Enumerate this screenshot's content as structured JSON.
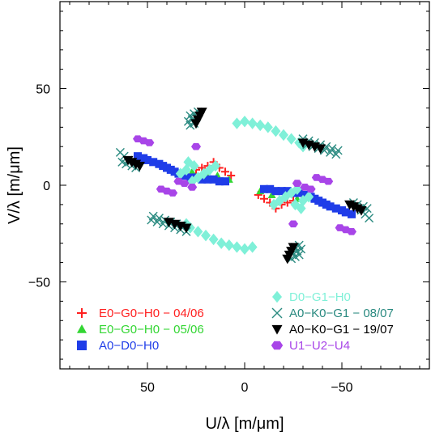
{
  "chart_data": {
    "type": "scatter",
    "xlabel": "U/λ  [m/μm]",
    "ylabel": "V/λ  [m/μm]",
    "xlim": [
      95,
      -95
    ],
    "ylim": [
      -95,
      95
    ],
    "xticks": [
      50,
      0,
      -50
    ],
    "yticks": [
      50,
      0,
      -50
    ],
    "x_tick_labels": [
      "50",
      "0",
      "−50"
    ],
    "y_tick_labels": [
      "50",
      "0",
      "−50"
    ],
    "grid": false,
    "legend_left": [
      {
        "label": "E0−G0−H0 − 04/06",
        "color": "#ff2020",
        "marker": "plus"
      },
      {
        "label": "E0−G0−H0 − 05/06",
        "color": "#33d633",
        "marker": "triangle-up"
      },
      {
        "label": "A0−D0−H0",
        "color": "#1f3de8",
        "marker": "square"
      }
    ],
    "legend_right": [
      {
        "label": "D0−G1−H0",
        "color": "#7ff0d8",
        "marker": "diamond"
      },
      {
        "label": "A0−K0−G1 − 08/07",
        "color": "#2a8a80",
        "marker": "cross"
      },
      {
        "label": "A0−K0−G1 − 19/07",
        "color": "#000000",
        "marker": "triangle-down"
      },
      {
        "label": "U1−U2−U4",
        "color": "#a845e8",
        "marker": "hexagon"
      }
    ],
    "series": [
      {
        "name": "E0−G0−H0 − 04/06",
        "color": "#ff2020",
        "marker": "plus",
        "points": [
          [
            25,
            8
          ],
          [
            22,
            9
          ],
          [
            19,
            10
          ],
          [
            16,
            12
          ],
          [
            13,
            9
          ],
          [
            10,
            7
          ],
          [
            7,
            5
          ],
          [
            -25,
            -8
          ],
          [
            -22,
            -9
          ],
          [
            -19,
            -10
          ],
          [
            -16,
            -12
          ],
          [
            -13,
            -9
          ],
          [
            -10,
            -7
          ],
          [
            -7,
            -5
          ]
        ]
      },
      {
        "name": "E0−G0−H0 − 05/06",
        "color": "#33d633",
        "marker": "triangle-up",
        "points": [
          [
            27,
            7
          ],
          [
            20,
            6
          ],
          [
            14,
            5
          ],
          [
            8,
            3
          ],
          [
            -27,
            -7
          ],
          [
            -20,
            -6
          ],
          [
            -14,
            -5
          ],
          [
            -8,
            -3
          ]
        ]
      },
      {
        "name": "A0−D0−H0",
        "color": "#1f3de8",
        "marker": "square",
        "points": [
          [
            55,
            15
          ],
          [
            52,
            14
          ],
          [
            50,
            13
          ],
          [
            47,
            12
          ],
          [
            44,
            11
          ],
          [
            42,
            10
          ],
          [
            40,
            9
          ],
          [
            38,
            8
          ],
          [
            36,
            7
          ],
          [
            34,
            6
          ],
          [
            31,
            5
          ],
          [
            28,
            4
          ],
          [
            25,
            4
          ],
          [
            22,
            3
          ],
          [
            19,
            3
          ],
          [
            16,
            3
          ],
          [
            13,
            2
          ],
          [
            10,
            2
          ],
          [
            -55,
            -15
          ],
          [
            -52,
            -14
          ],
          [
            -50,
            -13
          ],
          [
            -47,
            -12
          ],
          [
            -44,
            -11
          ],
          [
            -42,
            -10
          ],
          [
            -40,
            -9
          ],
          [
            -38,
            -8
          ],
          [
            -36,
            -7
          ],
          [
            -34,
            -6
          ],
          [
            -31,
            -5
          ],
          [
            -28,
            -4
          ],
          [
            -25,
            -4
          ],
          [
            -22,
            -3
          ],
          [
            -19,
            -3
          ],
          [
            -16,
            -3
          ],
          [
            -13,
            -2
          ],
          [
            -10,
            -2
          ]
        ]
      },
      {
        "name": "D0−G1−H0",
        "color": "#7ff0d8",
        "marker": "diamond",
        "points": [
          [
            4,
            32
          ],
          [
            0,
            33
          ],
          [
            -4,
            32
          ],
          [
            -8,
            31
          ],
          [
            -12,
            30
          ],
          [
            -16,
            28
          ],
          [
            -20,
            26
          ],
          [
            -24,
            24
          ],
          [
            -28,
            22
          ],
          [
            -30,
            20
          ],
          [
            -15,
            -10
          ],
          [
            -18,
            -8
          ],
          [
            -21,
            -6
          ],
          [
            -24,
            -4
          ],
          [
            -27,
            -2
          ],
          [
            26,
            10
          ],
          [
            30,
            8
          ],
          [
            33,
            6
          ],
          [
            29,
            12
          ],
          [
            -4,
            -32
          ],
          [
            0,
            -33
          ],
          [
            4,
            -32
          ],
          [
            8,
            -31
          ],
          [
            12,
            -30
          ],
          [
            16,
            -28
          ],
          [
            20,
            -26
          ],
          [
            24,
            -24
          ],
          [
            28,
            -22
          ],
          [
            30,
            -20
          ],
          [
            15,
            10
          ],
          [
            18,
            8
          ],
          [
            21,
            6
          ],
          [
            24,
            4
          ],
          [
            27,
            2
          ],
          [
            -26,
            -10
          ],
          [
            -30,
            -8
          ],
          [
            -33,
            -6
          ],
          [
            -29,
            -12
          ]
        ]
      },
      {
        "name": "A0−K0−G1 − 08/07",
        "color": "#2a8a80",
        "marker": "cross",
        "points": [
          [
            24,
            38
          ],
          [
            26,
            37
          ],
          [
            28,
            36
          ],
          [
            25,
            35
          ],
          [
            27,
            34
          ],
          [
            29,
            33
          ],
          [
            26,
            32
          ],
          [
            28,
            31
          ],
          [
            -30,
            24
          ],
          [
            -33,
            23
          ],
          [
            -36,
            22
          ],
          [
            -39,
            21
          ],
          [
            -42,
            20
          ],
          [
            -45,
            19
          ],
          [
            -48,
            18
          ],
          [
            -32,
            21
          ],
          [
            -35,
            20
          ],
          [
            -38,
            19
          ],
          [
            -41,
            18
          ],
          [
            -44,
            17
          ],
          [
            -47,
            16
          ],
          [
            64,
            17
          ],
          [
            62,
            15
          ],
          [
            60,
            13
          ],
          [
            63,
            12
          ],
          [
            61,
            11
          ],
          [
            58,
            10
          ],
          [
            56,
            9
          ],
          [
            -24,
            -38
          ],
          [
            -26,
            -37
          ],
          [
            -28,
            -36
          ],
          [
            -25,
            -35
          ],
          [
            -27,
            -34
          ],
          [
            -29,
            -33
          ],
          [
            -26,
            -32
          ],
          [
            -28,
            -31
          ],
          [
            30,
            -24
          ],
          [
            33,
            -23
          ],
          [
            36,
            -22
          ],
          [
            39,
            -21
          ],
          [
            42,
            -20
          ],
          [
            45,
            -19
          ],
          [
            48,
            -18
          ],
          [
            32,
            -21
          ],
          [
            35,
            -20
          ],
          [
            38,
            -19
          ],
          [
            41,
            -18
          ],
          [
            44,
            -17
          ],
          [
            47,
            -16
          ],
          [
            -64,
            -17
          ],
          [
            -62,
            -15
          ],
          [
            -60,
            -13
          ],
          [
            -63,
            -12
          ],
          [
            -61,
            -11
          ],
          [
            -58,
            -10
          ],
          [
            -56,
            -9
          ]
        ]
      },
      {
        "name": "A0−K0−G1 − 19/07",
        "color": "#000000",
        "marker": "triangle-down",
        "points": [
          [
            22,
            38
          ],
          [
            23,
            36
          ],
          [
            24,
            34
          ],
          [
            25,
            32
          ],
          [
            -30,
            22
          ],
          [
            -33,
            21
          ],
          [
            -36,
            20
          ],
          [
            -39,
            19
          ],
          [
            60,
            13
          ],
          [
            58,
            12
          ],
          [
            56,
            11
          ],
          [
            54,
            10
          ],
          [
            -22,
            -38
          ],
          [
            -23,
            -36
          ],
          [
            -24,
            -34
          ],
          [
            -25,
            -32
          ],
          [
            30,
            -22
          ],
          [
            33,
            -21
          ],
          [
            36,
            -20
          ],
          [
            39,
            -19
          ],
          [
            -60,
            -13
          ],
          [
            -58,
            -12
          ],
          [
            -56,
            -11
          ],
          [
            -54,
            -10
          ]
        ]
      },
      {
        "name": "U1−U2−U4",
        "color": "#a845e8",
        "marker": "hexagon",
        "points": [
          [
            55,
            24
          ],
          [
            52,
            23
          ],
          [
            49,
            22
          ],
          [
            -37,
            4
          ],
          [
            -40,
            3
          ],
          [
            -43,
            2
          ],
          [
            27,
            -1
          ],
          [
            31,
            1
          ],
          [
            34,
            2
          ],
          [
            25,
            20
          ],
          [
            -55,
            -24
          ],
          [
            -52,
            -23
          ],
          [
            -49,
            -22
          ],
          [
            37,
            -4
          ],
          [
            40,
            -3
          ],
          [
            43,
            -2
          ],
          [
            -27,
            1
          ],
          [
            -31,
            -1
          ],
          [
            -34,
            -2
          ],
          [
            -25,
            -20
          ]
        ]
      }
    ]
  }
}
